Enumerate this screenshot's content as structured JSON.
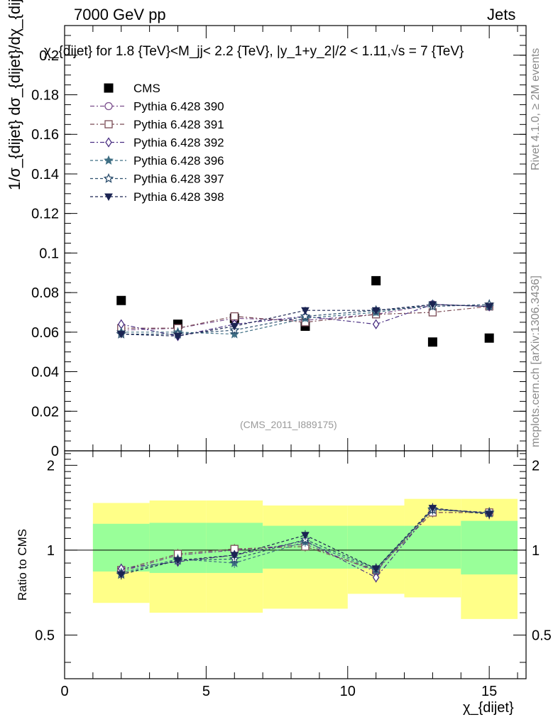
{
  "header": {
    "energy": "7000 GeV pp",
    "category": "Jets"
  },
  "side_labels": {
    "rivet": "Rivet 4.1.0, ≥ 2M events",
    "mcplots": "mcplots.cern.ch [arXiv:1306.3436]"
  },
  "main_plot": {
    "title": "χ_{dijet} for 1.8 {TeV}<M_jj< 2.2 {TeV}, |y_1+y_2|/2 < 1.11,√s = 7 {TeV}",
    "ylabel": "1/σ_{dijet} dσ_{dijet}/dχ_{dijet}",
    "watermark": "(CMS_2011_I889175)"
  },
  "ratio_plot": {
    "ylabel": "Ratio to CMS",
    "xlabel": "χ_{dijet}"
  },
  "chart_data": [
    {
      "type": "scatter",
      "panel": "main",
      "xlim": [
        0,
        16.3
      ],
      "ylim": [
        0,
        0.215
      ],
      "y_ticks": [
        0,
        0.02,
        0.04,
        0.06,
        0.08,
        0.1,
        0.12,
        0.14,
        0.16,
        0.18,
        0.2
      ],
      "y_tick_labels": [
        "0",
        "0.02",
        "0.04",
        "0.06",
        "0.08",
        "0.1",
        "0.12",
        "0.14",
        "0.16",
        "0.18",
        "0.2"
      ],
      "x": [
        2,
        4,
        6,
        8.5,
        11,
        13,
        15
      ],
      "series": [
        {
          "name": "CMS",
          "color": "#000000",
          "marker": "square-filled",
          "dash": "",
          "values": [
            0.076,
            0.064,
            0.067,
            0.063,
            0.086,
            0.055,
            0.057
          ]
        },
        {
          "name": "Pythia 6.428 390",
          "color": "#7a4d8c",
          "marker": "circle-open",
          "dash": "6,3,2,3",
          "values": [
            0.061,
            0.062,
            0.067,
            0.066,
            0.069,
            0.074,
            0.073
          ]
        },
        {
          "name": "Pythia 6.428 391",
          "color": "#7a4a55",
          "marker": "square-open",
          "dash": "6,3,2,3",
          "values": [
            0.062,
            0.062,
            0.068,
            0.065,
            0.069,
            0.07,
            0.073
          ]
        },
        {
          "name": "Pythia 6.428 392",
          "color": "#4a2f82",
          "marker": "diamond-open",
          "dash": "6,3,2,3",
          "values": [
            0.064,
            0.058,
            0.064,
            0.068,
            0.064,
            0.074,
            0.073
          ]
        },
        {
          "name": "Pythia 6.428 396",
          "color": "#3f6f84",
          "marker": "star-filled",
          "dash": "4,3",
          "values": [
            0.06,
            0.06,
            0.059,
            0.067,
            0.07,
            0.074,
            0.073
          ]
        },
        {
          "name": "Pythia 6.428 397",
          "color": "#2d4f6e",
          "marker": "star-open",
          "dash": "4,3",
          "values": [
            0.059,
            0.059,
            0.061,
            0.068,
            0.071,
            0.073,
            0.074
          ]
        },
        {
          "name": "Pythia 6.428 398",
          "color": "#1b2452",
          "marker": "triangle-down-filled",
          "dash": "4,3",
          "values": [
            0.059,
            0.058,
            0.063,
            0.071,
            0.071,
            0.074,
            0.073
          ]
        }
      ]
    },
    {
      "type": "scatter",
      "panel": "ratio",
      "xlabel": "χ_{dijet}",
      "ylabel": "Ratio to CMS",
      "xlim": [
        0,
        16.3
      ],
      "ylim": [
        0.35,
        2.25
      ],
      "x_ticks": [
        0,
        5,
        10,
        15
      ],
      "x_tick_labels": [
        "0",
        "5",
        "10",
        "15"
      ],
      "y_ticks": [
        0.5,
        1,
        2
      ],
      "y_tick_labels": [
        "0.5",
        "1",
        "2"
      ],
      "bands": {
        "x_edges": [
          1,
          3,
          5,
          7,
          10,
          12,
          14,
          16
        ],
        "yellow_low": [
          0.65,
          0.6,
          0.6,
          0.62,
          0.7,
          0.68,
          0.57,
          0.58
        ],
        "yellow_high": [
          1.47,
          1.5,
          1.5,
          1.44,
          1.44,
          1.52,
          1.52,
          1.52
        ],
        "green_low": [
          0.84,
          0.83,
          0.83,
          0.86,
          0.86,
          0.86,
          0.82,
          0.82
        ],
        "green_high": [
          1.24,
          1.25,
          1.25,
          1.22,
          1.22,
          1.22,
          1.27,
          1.27
        ]
      },
      "x": [
        2,
        4,
        6,
        8.5,
        11,
        13,
        15
      ],
      "series": [
        {
          "name": "Pythia 6.428 390",
          "values": [
            0.84,
            0.96,
            1.0,
            1.05,
            0.84,
            1.4,
            1.36
          ]
        },
        {
          "name": "Pythia 6.428 391",
          "values": [
            0.85,
            0.97,
            1.01,
            1.03,
            0.85,
            1.36,
            1.36
          ]
        },
        {
          "name": "Pythia 6.428 392",
          "values": [
            0.86,
            0.91,
            0.96,
            1.08,
            0.8,
            1.4,
            1.35
          ]
        },
        {
          "name": "Pythia 6.428 396",
          "values": [
            0.83,
            0.93,
            0.9,
            1.07,
            0.85,
            1.4,
            1.35
          ]
        },
        {
          "name": "Pythia 6.428 397",
          "values": [
            0.82,
            0.92,
            0.93,
            1.09,
            0.86,
            1.39,
            1.36
          ]
        },
        {
          "name": "Pythia 6.428 398",
          "values": [
            0.82,
            0.92,
            0.96,
            1.13,
            0.86,
            1.41,
            1.34
          ]
        }
      ]
    }
  ]
}
